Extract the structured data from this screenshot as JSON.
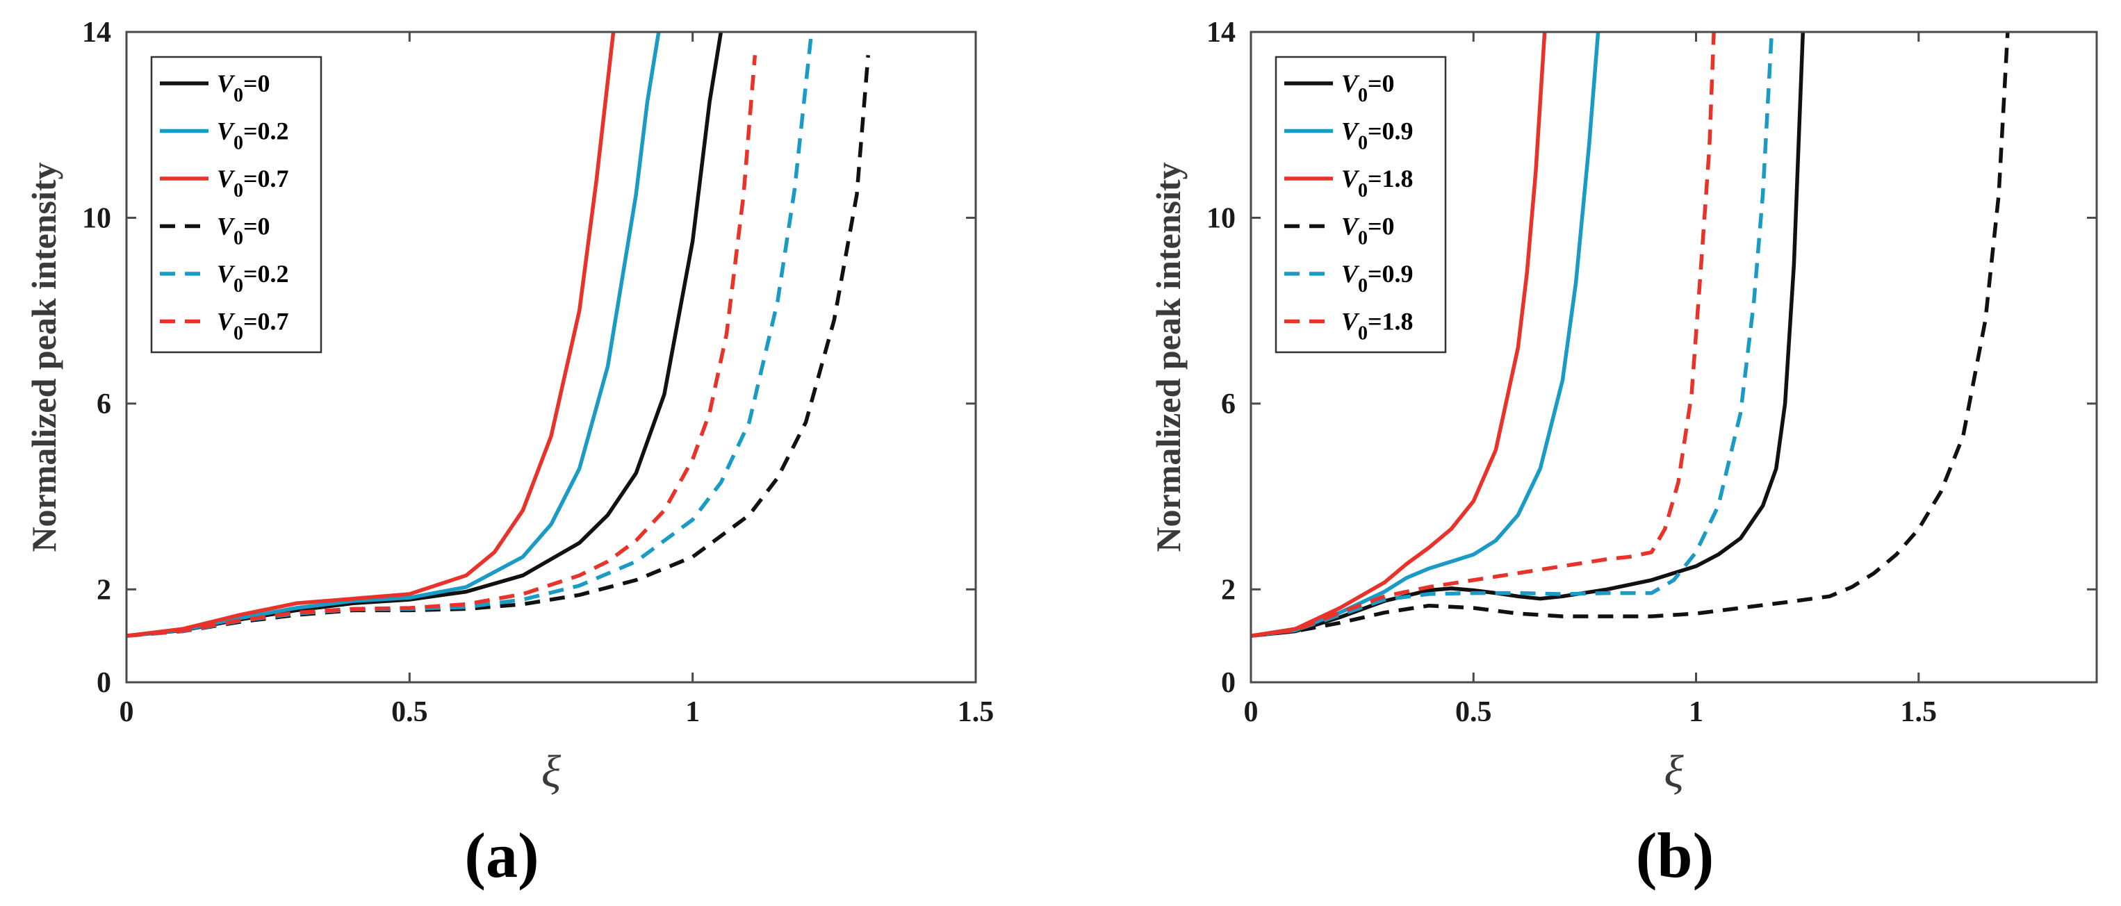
{
  "chart_data": [
    {
      "panel": "(a)",
      "type": "line",
      "xlabel": "ξ",
      "ylabel": "Normalized peak intensity",
      "xlim": [
        0,
        1.5
      ],
      "ylim": [
        0,
        14
      ],
      "xticks": [
        0,
        0.5,
        1,
        1.5
      ],
      "xtick_labels": [
        "0",
        "0.5",
        "1",
        "1.5"
      ],
      "yticks": [
        0,
        2,
        6,
        10,
        14
      ],
      "ytick_labels": [
        "0",
        "2",
        "6",
        "10",
        "14"
      ],
      "legend_position": "top-left",
      "legend": [
        {
          "var": "V",
          "sub": "0",
          "val": "=0"
        },
        {
          "var": "V",
          "sub": "0",
          "val": "=0.2"
        },
        {
          "var": "V",
          "sub": "0",
          "val": "=0.7"
        },
        {
          "var": "V",
          "sub": "0",
          "val": "=0"
        },
        {
          "var": "V",
          "sub": "0",
          "val": "=0.2"
        },
        {
          "var": "V",
          "sub": "0",
          "val": "=0.7"
        }
      ],
      "series": [
        {
          "name": "V0=0",
          "color": "#111111",
          "dash": false,
          "x": [
            0,
            0.1,
            0.2,
            0.3,
            0.4,
            0.5,
            0.6,
            0.7,
            0.8,
            0.85,
            0.9,
            0.95,
            1.0,
            1.03,
            1.05
          ],
          "y": [
            1.0,
            1.12,
            1.35,
            1.55,
            1.7,
            1.78,
            1.95,
            2.3,
            3.0,
            3.6,
            4.5,
            6.2,
            9.5,
            12.5,
            14
          ]
        },
        {
          "name": "V0=0.2",
          "color": "#1a9bc6",
          "dash": false,
          "x": [
            0,
            0.1,
            0.2,
            0.3,
            0.4,
            0.5,
            0.6,
            0.7,
            0.75,
            0.8,
            0.85,
            0.9,
            0.92,
            0.94
          ],
          "y": [
            1.0,
            1.13,
            1.38,
            1.6,
            1.75,
            1.82,
            2.05,
            2.7,
            3.4,
            4.6,
            6.8,
            10.5,
            12.5,
            14
          ]
        },
        {
          "name": "V0=0.7",
          "color": "#e8322a",
          "dash": false,
          "x": [
            0,
            0.1,
            0.2,
            0.3,
            0.4,
            0.5,
            0.6,
            0.65,
            0.7,
            0.75,
            0.8,
            0.83,
            0.86
          ],
          "y": [
            1.0,
            1.15,
            1.45,
            1.7,
            1.8,
            1.9,
            2.3,
            2.8,
            3.7,
            5.3,
            8.0,
            10.8,
            14
          ]
        },
        {
          "name": "V0=0",
          "color": "#111111",
          "dash": true,
          "x": [
            0,
            0.1,
            0.2,
            0.3,
            0.4,
            0.5,
            0.6,
            0.7,
            0.8,
            0.9,
            1.0,
            1.1,
            1.15,
            1.2,
            1.25,
            1.29,
            1.31
          ],
          "y": [
            1.0,
            1.1,
            1.3,
            1.45,
            1.55,
            1.55,
            1.58,
            1.68,
            1.88,
            2.2,
            2.7,
            3.6,
            4.4,
            5.6,
            7.8,
            10.5,
            13.5
          ]
        },
        {
          "name": "V0=0.2",
          "color": "#1a9bc6",
          "dash": true,
          "x": [
            0,
            0.1,
            0.2,
            0.3,
            0.4,
            0.5,
            0.6,
            0.7,
            0.8,
            0.9,
            1.0,
            1.05,
            1.1,
            1.15,
            1.18,
            1.21
          ],
          "y": [
            1.0,
            1.1,
            1.32,
            1.48,
            1.57,
            1.58,
            1.62,
            1.78,
            2.08,
            2.6,
            3.5,
            4.3,
            5.6,
            8.2,
            10.6,
            14
          ]
        },
        {
          "name": "V0=0.7",
          "color": "#e8322a",
          "dash": true,
          "x": [
            0,
            0.1,
            0.2,
            0.3,
            0.4,
            0.5,
            0.6,
            0.7,
            0.8,
            0.85,
            0.9,
            0.95,
            1.0,
            1.03,
            1.06,
            1.09,
            1.11
          ],
          "y": [
            1.0,
            1.11,
            1.33,
            1.5,
            1.58,
            1.6,
            1.68,
            1.9,
            2.3,
            2.6,
            3.05,
            3.7,
            4.8,
            5.8,
            7.5,
            10.5,
            13.5
          ]
        }
      ]
    },
    {
      "panel": "(b)",
      "type": "line",
      "xlabel": "ξ",
      "ylabel": "Normalized peak intensity",
      "xlim": [
        0,
        1.9
      ],
      "ylim": [
        0,
        14
      ],
      "xticks": [
        0,
        0.5,
        1,
        1.5
      ],
      "xtick_labels": [
        "0",
        "0.5",
        "1",
        "1.5"
      ],
      "yticks": [
        0,
        2,
        6,
        10,
        14
      ],
      "ytick_labels": [
        "0",
        "2",
        "6",
        "10",
        "14"
      ],
      "legend_position": "top-left",
      "legend": [
        {
          "var": "V",
          "sub": "0",
          "val": "=0"
        },
        {
          "var": "V",
          "sub": "0",
          "val": "=0.9"
        },
        {
          "var": "V",
          "sub": "0",
          "val": "=1.8"
        },
        {
          "var": "V",
          "sub": "0",
          "val": "=0"
        },
        {
          "var": "V",
          "sub": "0",
          "val": "=0.9"
        },
        {
          "var": "V",
          "sub": "0",
          "val": "=1.8"
        }
      ],
      "series": [
        {
          "name": "V0=0",
          "color": "#111111",
          "dash": false,
          "x": [
            0,
            0.1,
            0.2,
            0.3,
            0.4,
            0.45,
            0.5,
            0.55,
            0.6,
            0.65,
            0.7,
            0.8,
            0.9,
            1.0,
            1.05,
            1.1,
            1.15,
            1.18,
            1.2,
            1.22,
            1.24
          ],
          "y": [
            1.0,
            1.1,
            1.4,
            1.75,
            1.98,
            2.02,
            1.98,
            1.92,
            1.85,
            1.8,
            1.85,
            2.0,
            2.2,
            2.5,
            2.75,
            3.1,
            3.8,
            4.6,
            6.0,
            9.0,
            14
          ]
        },
        {
          "name": "V0=0.9",
          "color": "#1a9bc6",
          "dash": false,
          "x": [
            0,
            0.1,
            0.2,
            0.3,
            0.35,
            0.4,
            0.45,
            0.5,
            0.55,
            0.6,
            0.65,
            0.7,
            0.73,
            0.76,
            0.78
          ],
          "y": [
            1.0,
            1.12,
            1.5,
            1.95,
            2.25,
            2.45,
            2.6,
            2.75,
            3.05,
            3.6,
            4.6,
            6.5,
            8.6,
            11.6,
            14
          ]
        },
        {
          "name": "V0=1.8",
          "color": "#e8322a",
          "dash": false,
          "x": [
            0,
            0.1,
            0.2,
            0.3,
            0.35,
            0.4,
            0.45,
            0.5,
            0.55,
            0.6,
            0.62,
            0.64,
            0.66
          ],
          "y": [
            1.0,
            1.15,
            1.6,
            2.15,
            2.55,
            2.9,
            3.3,
            3.9,
            5.0,
            7.2,
            8.8,
            11.0,
            14
          ]
        },
        {
          "name": "V0=0",
          "color": "#111111",
          "dash": true,
          "x": [
            0,
            0.1,
            0.2,
            0.3,
            0.4,
            0.5,
            0.6,
            0.7,
            0.8,
            0.9,
            1.0,
            1.1,
            1.2,
            1.3,
            1.35,
            1.4,
            1.45,
            1.5,
            1.55,
            1.6,
            1.65,
            1.68,
            1.7
          ],
          "y": [
            1.0,
            1.1,
            1.28,
            1.5,
            1.65,
            1.6,
            1.48,
            1.42,
            1.42,
            1.42,
            1.48,
            1.6,
            1.72,
            1.85,
            2.05,
            2.35,
            2.75,
            3.3,
            4.1,
            5.3,
            7.8,
            10.5,
            14
          ]
        },
        {
          "name": "V0=0.9",
          "color": "#1a9bc6",
          "dash": true,
          "x": [
            0,
            0.1,
            0.2,
            0.3,
            0.4,
            0.5,
            0.6,
            0.7,
            0.8,
            0.9,
            0.95,
            1.0,
            1.05,
            1.1,
            1.13,
            1.15,
            1.17
          ],
          "y": [
            1.0,
            1.12,
            1.45,
            1.78,
            1.9,
            1.92,
            1.92,
            1.9,
            1.92,
            1.92,
            2.2,
            2.8,
            3.8,
            5.8,
            8.2,
            10.5,
            14
          ]
        },
        {
          "name": "V0=1.8",
          "color": "#e8322a",
          "dash": true,
          "x": [
            0,
            0.1,
            0.2,
            0.3,
            0.4,
            0.5,
            0.6,
            0.7,
            0.8,
            0.85,
            0.9,
            0.93,
            0.96,
            0.99,
            1.01,
            1.03,
            1.04
          ],
          "y": [
            1.0,
            1.12,
            1.5,
            1.85,
            2.05,
            2.2,
            2.35,
            2.5,
            2.65,
            2.7,
            2.8,
            3.3,
            4.3,
            6.2,
            8.8,
            11.5,
            14
          ]
        }
      ]
    }
  ]
}
